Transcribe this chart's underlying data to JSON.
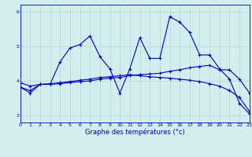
{
  "line1_x": [
    0,
    1,
    2,
    3,
    4,
    5,
    6,
    7,
    8,
    9,
    10,
    11,
    12,
    13,
    14,
    15,
    16,
    17,
    18,
    19,
    20,
    21,
    22,
    23
  ],
  "line1_y": [
    3.82,
    3.65,
    3.9,
    3.9,
    4.55,
    4.95,
    5.05,
    5.3,
    4.7,
    4.35,
    3.65,
    4.35,
    5.25,
    4.65,
    4.65,
    5.85,
    5.7,
    5.4,
    4.75,
    4.75,
    4.35,
    4.05,
    3.35,
    3.05
  ],
  "line2_x": [
    0,
    1,
    2,
    3,
    4,
    5,
    6,
    7,
    8,
    9,
    10,
    11,
    12,
    13,
    14,
    15,
    16,
    17,
    18,
    19,
    20,
    21,
    22,
    23
  ],
  "line2_y": [
    3.82,
    3.72,
    3.9,
    3.9,
    3.92,
    3.95,
    3.98,
    4.0,
    4.05,
    4.08,
    4.1,
    4.15,
    4.18,
    4.2,
    4.22,
    4.28,
    4.32,
    4.38,
    4.42,
    4.45,
    4.32,
    4.32,
    4.05,
    3.65
  ],
  "line3_x": [
    0,
    1,
    2,
    3,
    4,
    5,
    6,
    7,
    8,
    9,
    10,
    11,
    12,
    13,
    14,
    15,
    16,
    17,
    18,
    19,
    20,
    21,
    22,
    23
  ],
  "line3_y": [
    3.95,
    3.85,
    3.9,
    3.92,
    3.95,
    3.98,
    4.02,
    4.05,
    4.1,
    4.12,
    4.15,
    4.18,
    4.15,
    4.12,
    4.1,
    4.08,
    4.05,
    4.02,
    3.98,
    3.92,
    3.85,
    3.72,
    3.52,
    3.12
  ],
  "line_color": "#0000bb",
  "bg_color": "#d4eef0",
  "grid_color": "#b0d8dc",
  "xlabel": "Graphe des températures (°c)",
  "xlim": [
    0,
    23
  ],
  "ylim": [
    2.8,
    6.2
  ],
  "yticks": [
    3,
    4,
    5,
    6
  ],
  "xticks": [
    0,
    1,
    2,
    3,
    4,
    5,
    6,
    7,
    8,
    9,
    10,
    11,
    12,
    13,
    14,
    15,
    16,
    17,
    18,
    19,
    20,
    21,
    22,
    23
  ]
}
